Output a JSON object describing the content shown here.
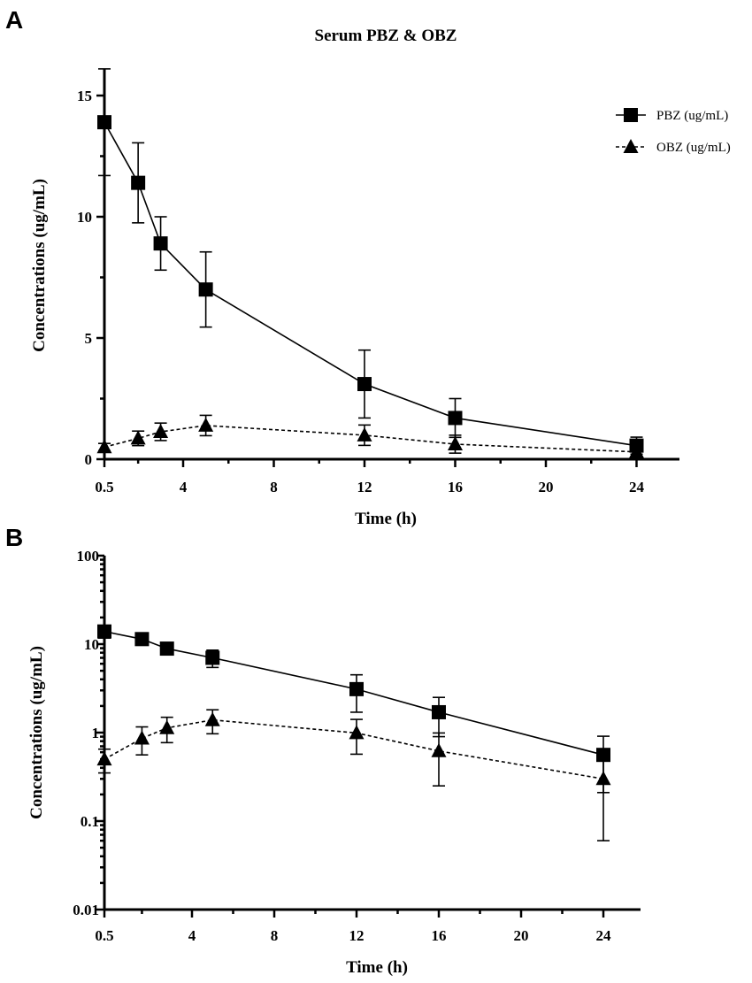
{
  "chart_data": [
    {
      "panel": "A",
      "type": "line",
      "title": "Serum PBZ & OBZ",
      "xlabel": "Time (h)",
      "ylabel": "Concentrations (ug/mL)",
      "yscale": "linear",
      "xlim": [
        0.5,
        26
      ],
      "ylim": [
        0,
        16
      ],
      "x_ticks": [
        0.5,
        4,
        8,
        12,
        16,
        20,
        24
      ],
      "x_tick_labels": [
        "0.5",
        "4",
        "8",
        "12",
        "16",
        "20",
        "24"
      ],
      "y_ticks": [
        0,
        5,
        10,
        15
      ],
      "y_tick_labels": [
        "0",
        "5",
        "10",
        "15"
      ],
      "legend_position": "top-right",
      "series": [
        {
          "name": "PBZ (ug/mL)",
          "marker": "square",
          "line": "solid",
          "x": [
            0.5,
            2,
            3,
            5,
            12,
            16,
            24
          ],
          "values": [
            13.9,
            11.4,
            8.9,
            7.0,
            3.1,
            1.7,
            0.56
          ],
          "err": [
            2.2,
            1.65,
            1.1,
            1.55,
            1.4,
            0.8,
            0.35
          ]
        },
        {
          "name": "OBZ (ug/mL)",
          "marker": "triangle",
          "line": "dashed",
          "x": [
            0.5,
            2,
            3,
            5,
            12,
            16,
            24
          ],
          "values": [
            0.5,
            0.86,
            1.13,
            1.39,
            0.99,
            0.62,
            0.3
          ],
          "err": [
            0.15,
            0.3,
            0.36,
            0.42,
            0.42,
            0.37,
            0.24
          ]
        }
      ]
    },
    {
      "panel": "B",
      "type": "line",
      "title": "",
      "xlabel": "Time (h)",
      "ylabel": "Concentrations (ug/mL)",
      "yscale": "log",
      "xlim": [
        0.5,
        26
      ],
      "ylim": [
        0.01,
        100
      ],
      "x_ticks": [
        0.5,
        4,
        8,
        12,
        16,
        20,
        24
      ],
      "x_tick_labels": [
        "0.5",
        "4",
        "8",
        "12",
        "16",
        "20",
        "24"
      ],
      "y_ticks": [
        0.01,
        0.1,
        1,
        10,
        100
      ],
      "y_tick_labels": [
        "0.01",
        "0.1",
        "1",
        "10",
        "100"
      ],
      "series": [
        {
          "name": "PBZ (ug/mL)",
          "marker": "square",
          "line": "solid",
          "x": [
            0.5,
            2,
            3,
            5,
            12,
            16,
            24
          ],
          "values": [
            13.9,
            11.4,
            8.9,
            7.0,
            3.1,
            1.7,
            0.56
          ],
          "err": [
            2.2,
            1.65,
            1.1,
            1.55,
            1.4,
            0.8,
            0.35
          ]
        },
        {
          "name": "OBZ (ug/mL)",
          "marker": "triangle",
          "line": "dashed",
          "x": [
            0.5,
            2,
            3,
            5,
            12,
            16,
            24
          ],
          "values": [
            0.5,
            0.86,
            1.13,
            1.39,
            0.99,
            0.62,
            0.3
          ],
          "err": [
            0.15,
            0.3,
            0.36,
            0.42,
            0.42,
            0.37,
            0.24
          ]
        }
      ]
    }
  ],
  "panel_labels": {
    "a": "A",
    "b": "B"
  }
}
